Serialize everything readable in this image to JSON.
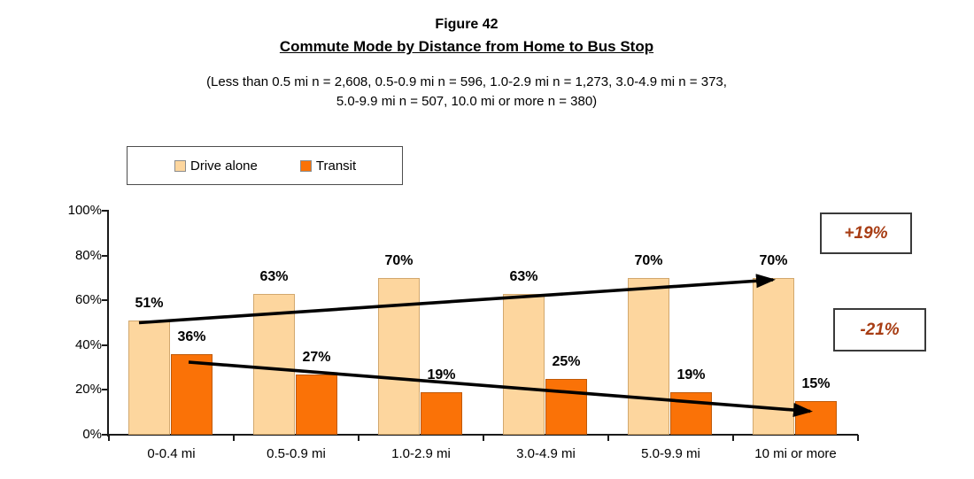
{
  "header": {
    "figure_label": "Figure 42",
    "title": "Commute Mode by Distance from Home to Bus Stop",
    "subtitle_line1": "(Less than 0.5 mi n = 2,608, 0.5-0.9 mi n = 596, 1.0-2.9 mi n = 1,273, 3.0-4.9 mi n = 373,",
    "subtitle_line2": "5.0-9.9 mi n = 507, 10.0 mi or more n = 380)"
  },
  "chart_data": {
    "type": "bar",
    "title": "Commute Mode by Distance from Home to Bus Stop",
    "categories": [
      "0-0.4 mi",
      "0.5-0.9 mi",
      "1.0-2.9 mi",
      "3.0-4.9 mi",
      "5.0-9.9 mi",
      "10 mi or more"
    ],
    "series": [
      {
        "name": "Drive alone",
        "values": [
          51,
          63,
          70,
          63,
          70,
          70
        ],
        "unit": "%",
        "color": "#FDD69E",
        "border_color": "#D2A86E"
      },
      {
        "name": "Transit",
        "values": [
          36,
          27,
          19,
          25,
          19,
          15
        ],
        "unit": "%",
        "color": "#FA7207",
        "border_color": "#C05A08"
      }
    ],
    "y_axis": {
      "min": 0,
      "max": 100,
      "tick_step": 20,
      "ticks": [
        "0%",
        "20%",
        "40%",
        "60%",
        "80%",
        "100%"
      ]
    },
    "grid": false,
    "legend_position": "top-left",
    "data_label_format": "percent",
    "annotations": [
      {
        "text": "+19%",
        "color": "#A83D14"
      },
      {
        "text": "-21%",
        "color": "#A83D14"
      }
    ],
    "trend_arrows": [
      {
        "series": "Drive alone",
        "from_value": 51,
        "to_value": 70,
        "direction": "up"
      },
      {
        "series": "Transit",
        "from_value": 36,
        "to_value": 15,
        "direction": "down"
      }
    ]
  }
}
